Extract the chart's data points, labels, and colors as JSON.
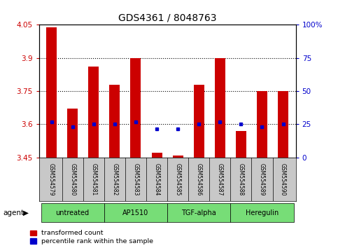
{
  "title": "GDS4361 / 8048763",
  "samples": [
    "GSM554579",
    "GSM554580",
    "GSM554581",
    "GSM554582",
    "GSM554583",
    "GSM554584",
    "GSM554585",
    "GSM554586",
    "GSM554587",
    "GSM554588",
    "GSM554589",
    "GSM554590"
  ],
  "red_values": [
    4.04,
    3.67,
    3.86,
    3.78,
    3.9,
    3.47,
    3.46,
    3.78,
    3.9,
    3.57,
    3.75,
    3.75
  ],
  "blue_values": [
    3.61,
    3.59,
    3.6,
    3.6,
    3.61,
    3.58,
    3.58,
    3.6,
    3.61,
    3.6,
    3.59,
    3.6
  ],
  "ymin": 3.45,
  "ymax": 4.05,
  "yticks": [
    3.45,
    3.6,
    3.75,
    3.9,
    4.05
  ],
  "ytick_labels": [
    "3.45",
    "3.6",
    "3.75",
    "3.9",
    "4.05"
  ],
  "right_yticks": [
    0,
    25,
    50,
    75,
    100
  ],
  "right_ytick_labels": [
    "0",
    "25",
    "50",
    "75",
    "100%"
  ],
  "dotted_lines": [
    3.9,
    3.75,
    3.6
  ],
  "group_labels": [
    "untreated",
    "AP1510",
    "TGF-alpha",
    "Heregulin"
  ],
  "group_ranges": [
    [
      0,
      3
    ],
    [
      3,
      6
    ],
    [
      6,
      9
    ],
    [
      9,
      12
    ]
  ],
  "bar_color": "#cc0000",
  "dot_color": "#0000cc",
  "bar_width": 0.5,
  "background_color": "#ffffff",
  "gray_color": "#c8c8c8",
  "green_color": "#77dd77",
  "tick_color_left": "#cc0000",
  "tick_color_right": "#0000cc",
  "agent_label": "agent",
  "legend_red": "transformed count",
  "legend_blue": "percentile rank within the sample"
}
